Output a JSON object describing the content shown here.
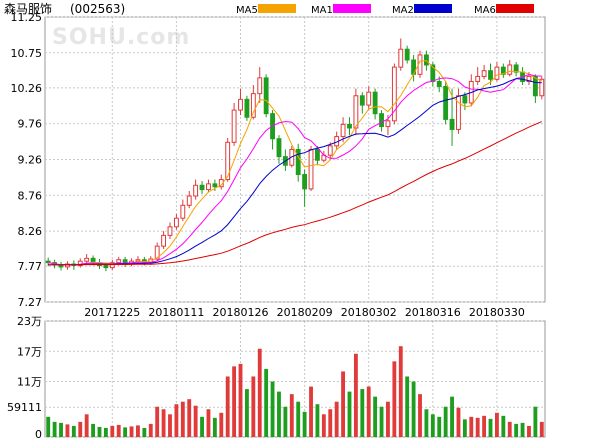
{
  "chart_data": {
    "type": "candlestick",
    "title": "森马服饰",
    "code": "(002563)",
    "watermark": "SOHU.com",
    "colors": {
      "up": "#e03a3a",
      "down": "#1e9e1e",
      "MA5": "#f5a300",
      "MA10": "#ff00ff",
      "MA20": "#0000cc",
      "MA60": "#e00000",
      "grid": "#c8c8c8"
    },
    "legend": [
      {
        "name": "MA5",
        "color": "#f5a300"
      },
      {
        "name": "MA10",
        "color": "#ff00ff"
      },
      {
        "name": "MA20",
        "color": "#0000cc"
      },
      {
        "name": "MA60",
        "color": "#e00000"
      }
    ],
    "price_axis": {
      "ylim": [
        7.27,
        11.25
      ],
      "ticks": [
        "11.25",
        "10.75",
        "10.26",
        "9.76",
        "9.26",
        "8.76",
        "8.26",
        "7.77",
        "7.27"
      ]
    },
    "volume_axis": {
      "ylim": [
        0,
        230000
      ],
      "tick_values": [
        230000,
        170000,
        110000,
        59111,
        0
      ],
      "tick_labels": [
        "23万",
        "17万",
        "11万",
        "59111",
        "0"
      ]
    },
    "x_labels": [
      {
        "index": 10,
        "label": "20171225"
      },
      {
        "index": 20,
        "label": "20180111"
      },
      {
        "index": 30,
        "label": "20180126"
      },
      {
        "index": 40,
        "label": "20180209"
      },
      {
        "index": 50,
        "label": "20180302"
      },
      {
        "index": 60,
        "label": "20180316"
      },
      {
        "index": 70,
        "label": "20180330"
      }
    ],
    "candles": [
      [
        7.84,
        7.82,
        7.89,
        7.77
      ],
      [
        7.82,
        7.79,
        7.86,
        7.74
      ],
      [
        7.79,
        7.76,
        7.83,
        7.71
      ],
      [
        7.76,
        7.8,
        7.84,
        7.72
      ],
      [
        7.8,
        7.78,
        7.85,
        7.72
      ],
      [
        7.78,
        7.84,
        7.88,
        7.75
      ],
      [
        7.84,
        7.88,
        7.94,
        7.8
      ],
      [
        7.88,
        7.82,
        7.92,
        7.78
      ],
      [
        7.82,
        7.78,
        7.87,
        7.73
      ],
      [
        7.78,
        7.75,
        7.81,
        7.7
      ],
      [
        7.75,
        7.82,
        7.86,
        7.72
      ],
      [
        7.82,
        7.86,
        7.9,
        7.78
      ],
      [
        7.86,
        7.8,
        7.9,
        7.76
      ],
      [
        7.8,
        7.84,
        7.88,
        7.77
      ],
      [
        7.84,
        7.86,
        7.91,
        7.8
      ],
      [
        7.86,
        7.82,
        7.9,
        7.78
      ],
      [
        7.82,
        7.87,
        7.91,
        7.79
      ],
      [
        7.87,
        8.05,
        8.1,
        7.85
      ],
      [
        8.05,
        8.2,
        8.26,
        8.01
      ],
      [
        8.2,
        8.32,
        8.38,
        8.15
      ],
      [
        8.32,
        8.44,
        8.5,
        8.28
      ],
      [
        8.44,
        8.62,
        8.7,
        8.4
      ],
      [
        8.62,
        8.75,
        8.82,
        8.58
      ],
      [
        8.75,
        8.9,
        8.98,
        8.7
      ],
      [
        8.9,
        8.84,
        8.96,
        8.78
      ],
      [
        8.84,
        8.92,
        8.98,
        8.8
      ],
      [
        8.92,
        8.88,
        8.98,
        8.82
      ],
      [
        8.88,
        8.98,
        9.05,
        8.84
      ],
      [
        8.98,
        9.5,
        9.56,
        8.95
      ],
      [
        9.5,
        9.95,
        10.05,
        9.45
      ],
      [
        9.95,
        10.1,
        10.25,
        9.88
      ],
      [
        10.1,
        9.85,
        10.15,
        9.8
      ],
      [
        9.85,
        10.18,
        10.3,
        9.82
      ],
      [
        10.18,
        10.4,
        10.55,
        10.05
      ],
      [
        10.4,
        9.9,
        10.45,
        9.85
      ],
      [
        9.9,
        9.55,
        9.95,
        9.4
      ],
      [
        9.55,
        9.3,
        9.6,
        9.2
      ],
      [
        9.3,
        9.18,
        9.4,
        9.1
      ],
      [
        9.18,
        9.4,
        9.45,
        9.15
      ],
      [
        9.4,
        9.05,
        9.48,
        8.95
      ],
      [
        9.05,
        8.85,
        9.12,
        8.6
      ],
      [
        8.85,
        9.4,
        9.45,
        8.82
      ],
      [
        9.4,
        9.25,
        9.45,
        9.18
      ],
      [
        9.25,
        9.32,
        9.38,
        9.22
      ],
      [
        9.32,
        9.45,
        9.5,
        9.28
      ],
      [
        9.45,
        9.58,
        9.65,
        9.4
      ],
      [
        9.58,
        9.75,
        9.85,
        9.5
      ],
      [
        9.75,
        9.7,
        9.85,
        9.6
      ],
      [
        9.7,
        10.15,
        10.25,
        9.6
      ],
      [
        10.15,
        10.02,
        10.2,
        9.9
      ],
      [
        10.02,
        10.2,
        10.28,
        9.95
      ],
      [
        10.2,
        9.9,
        10.25,
        9.82
      ],
      [
        9.9,
        9.72,
        9.95,
        9.65
      ],
      [
        9.72,
        9.8,
        9.88,
        9.6
      ],
      [
        9.8,
        10.55,
        10.6,
        9.75
      ],
      [
        10.55,
        10.8,
        10.95,
        10.5
      ],
      [
        10.8,
        10.65,
        10.85,
        10.6
      ],
      [
        10.65,
        10.45,
        10.72,
        10.35
      ],
      [
        10.45,
        10.72,
        10.78,
        10.4
      ],
      [
        10.72,
        10.58,
        10.78,
        10.5
      ],
      [
        10.58,
        10.35,
        10.62,
        10.28
      ],
      [
        10.35,
        10.28,
        10.42,
        10.2
      ],
      [
        10.28,
        9.82,
        10.35,
        9.75
      ],
      [
        9.82,
        9.68,
        10.25,
        9.45
      ],
      [
        9.68,
        10.15,
        10.25,
        9.62
      ],
      [
        10.15,
        10.05,
        10.2,
        9.95
      ],
      [
        10.05,
        10.35,
        10.45,
        10.0
      ],
      [
        10.35,
        10.42,
        10.55,
        10.3
      ],
      [
        10.42,
        10.5,
        10.58,
        10.38
      ],
      [
        10.5,
        10.38,
        10.6,
        10.3
      ],
      [
        10.38,
        10.55,
        10.62,
        10.35
      ],
      [
        10.55,
        10.45,
        10.6,
        10.4
      ],
      [
        10.45,
        10.58,
        10.65,
        10.42
      ],
      [
        10.58,
        10.48,
        10.62,
        10.42
      ],
      [
        10.48,
        10.35,
        10.55,
        10.3
      ],
      [
        10.35,
        10.42,
        10.48,
        10.3
      ],
      [
        10.42,
        10.15,
        10.45,
        10.05
      ],
      [
        10.15,
        10.38,
        10.42,
        10.1
      ]
    ],
    "volumes": [
      40000,
      30000,
      28000,
      25000,
      22000,
      30000,
      45000,
      26000,
      20000,
      18000,
      22000,
      24000,
      19000,
      21000,
      23000,
      18000,
      26000,
      60000,
      55000,
      45000,
      65000,
      70000,
      75000,
      62000,
      40000,
      55000,
      38000,
      48000,
      120000,
      140000,
      145000,
      95000,
      120000,
      175000,
      135000,
      110000,
      90000,
      60000,
      85000,
      70000,
      50000,
      100000,
      65000,
      45000,
      55000,
      70000,
      130000,
      90000,
      165000,
      95000,
      100000,
      80000,
      60000,
      70000,
      150000,
      180000,
      120000,
      110000,
      85000,
      55000,
      45000,
      40000,
      60000,
      80000,
      58000,
      35000,
      40000,
      38000,
      42000,
      36000,
      48000,
      42000,
      30000,
      26000,
      28000,
      22000,
      60000,
      30000
    ]
  }
}
